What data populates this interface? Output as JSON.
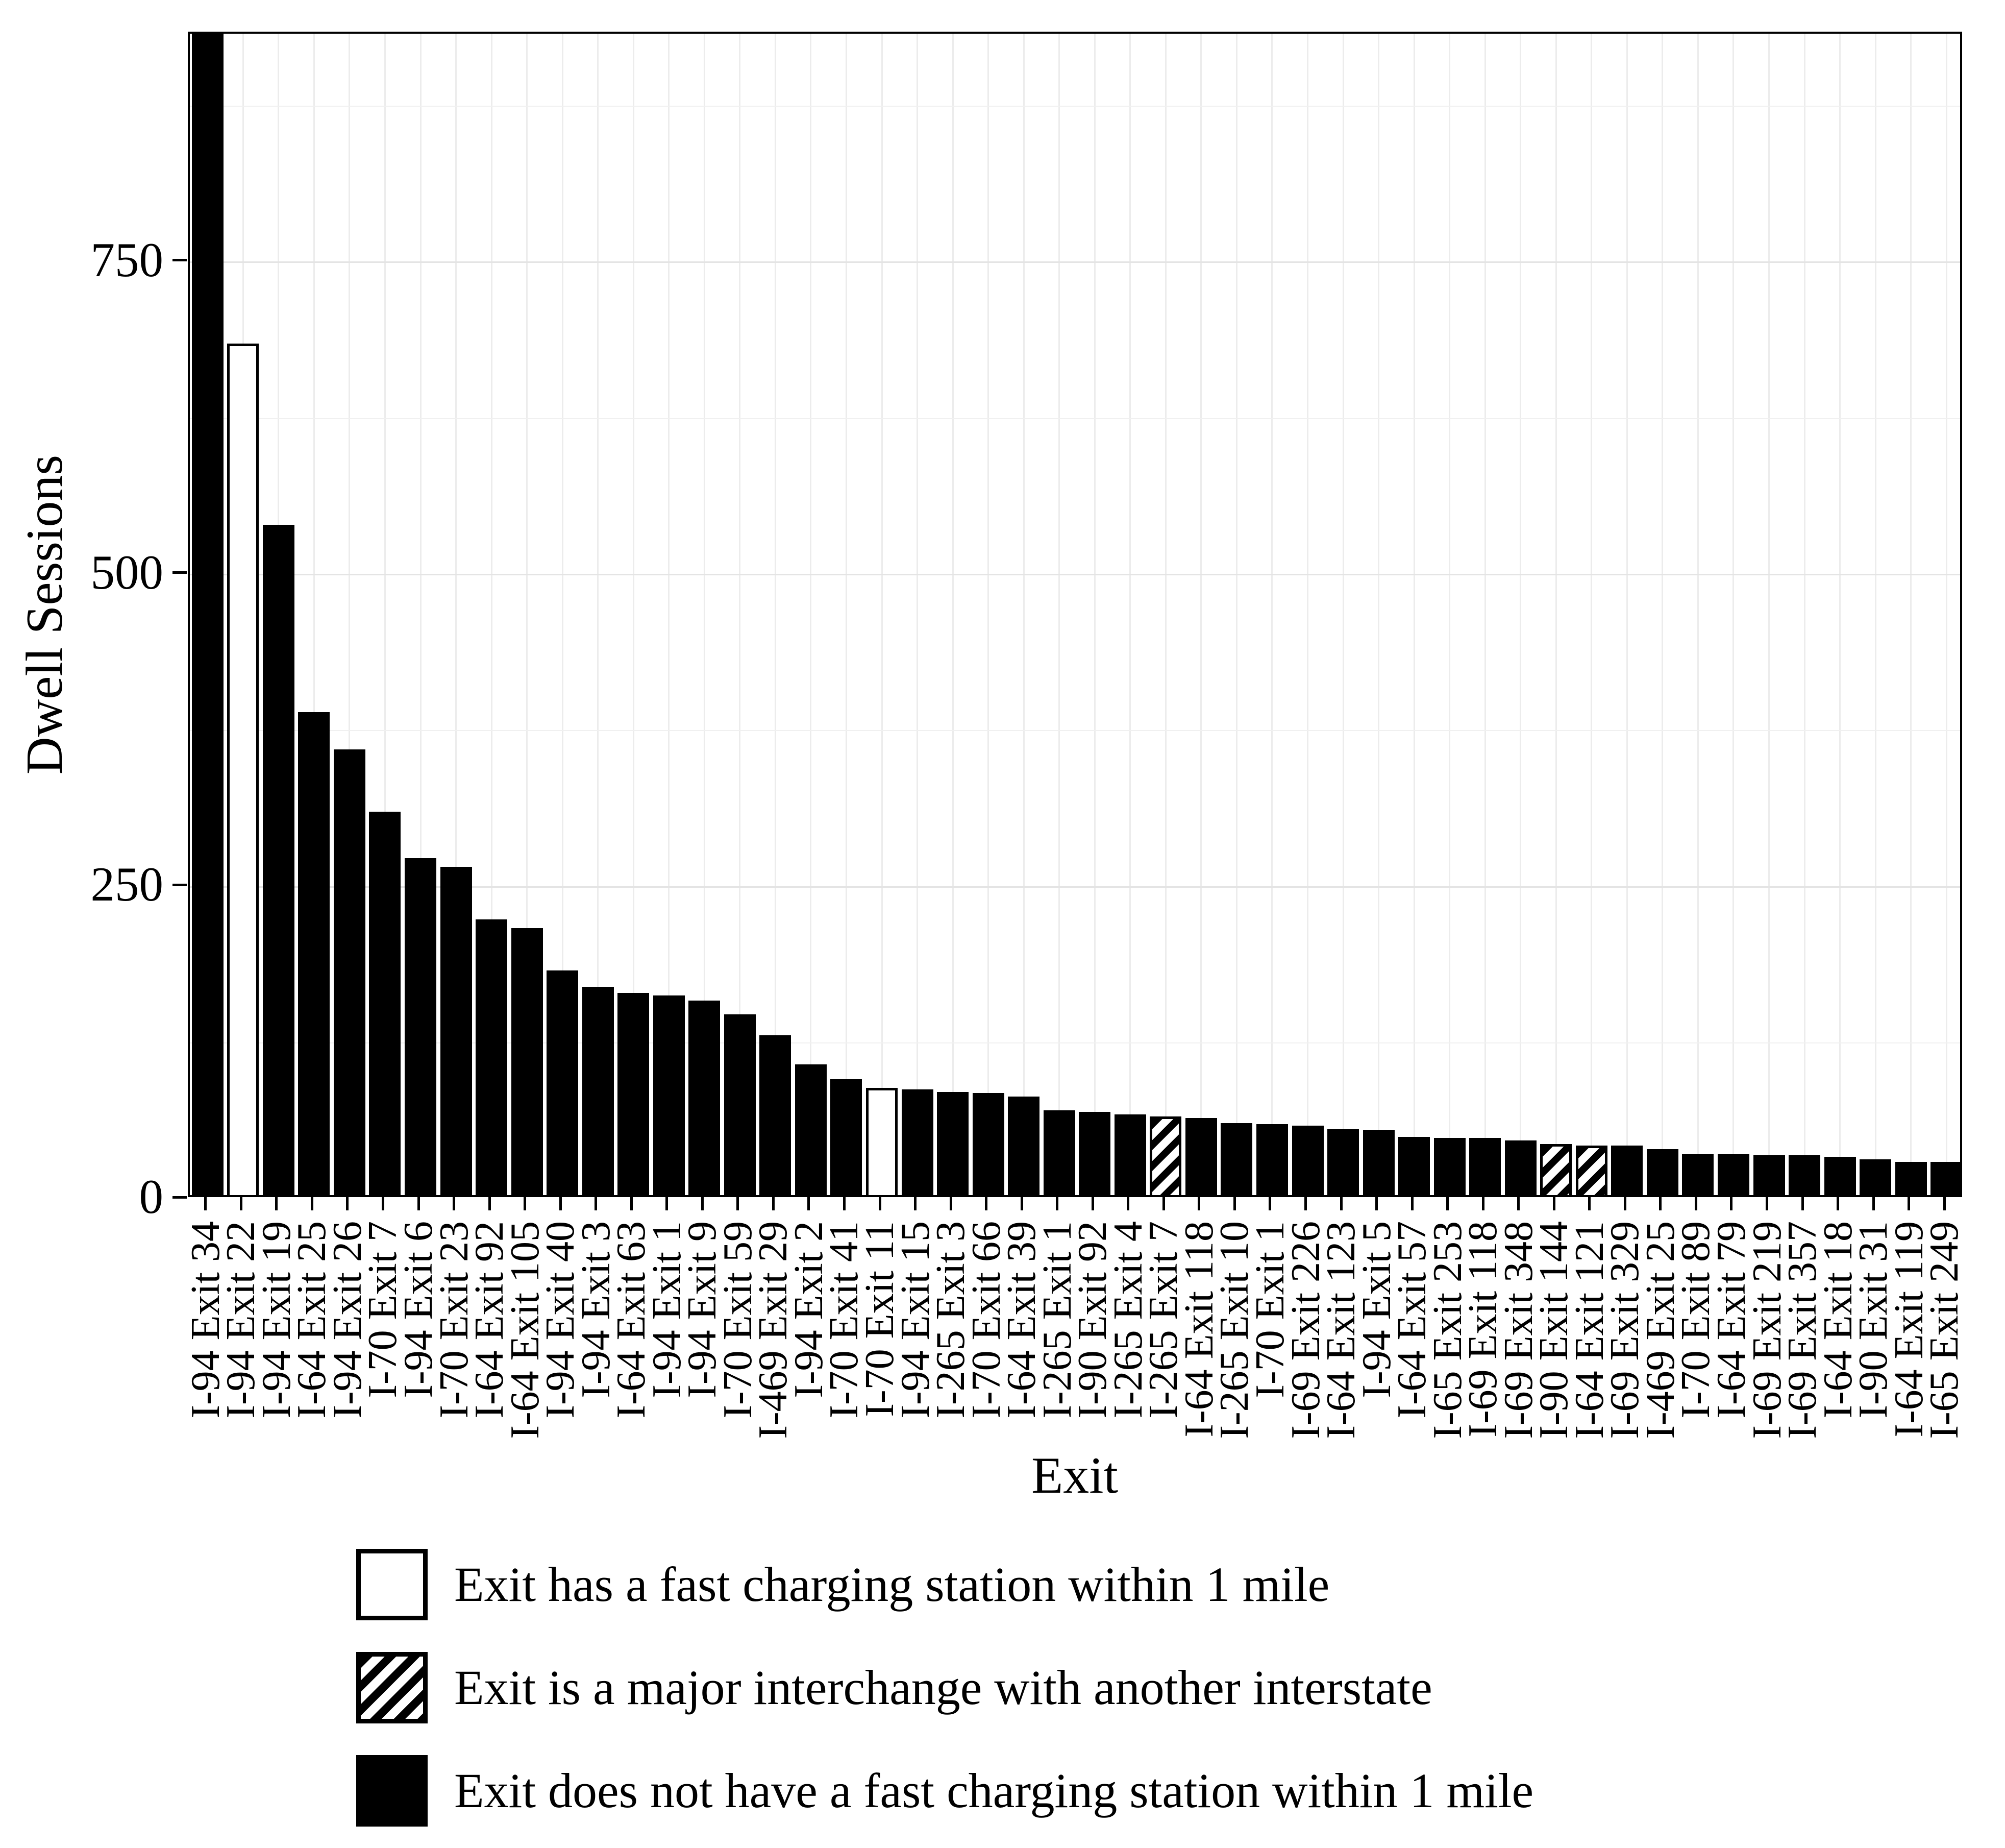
{
  "figure": {
    "background": "#ffffff",
    "text_color": "#000000",
    "gridline_major_color": "#e4e4e4",
    "gridline_minor_color": "#f0f0f0",
    "gridline_vertical_color": "#ececec"
  },
  "chart_data": {
    "type": "bar",
    "title": "",
    "xlabel": "Exit",
    "ylabel": "Dwell Sessions",
    "ylim": [
      0,
      933
    ],
    "y_ticks": [
      0,
      250,
      500,
      750
    ],
    "y_minor_gridlines": [
      125,
      375,
      625,
      875
    ],
    "grid": "on",
    "legend_position": "bottom-left",
    "first_bar_clipped_at_top": true,
    "categories_legend": {
      "has_station": "white fill",
      "interchange": "diagonal hatch",
      "no_station": "black fill"
    },
    "bars": [
      {
        "exit": "I-94 Exit 34",
        "value": 940,
        "category": "no_station"
      },
      {
        "exit": "I-94 Exit 22",
        "value": 685,
        "category": "has_station"
      },
      {
        "exit": "I-94 Exit 19",
        "value": 540,
        "category": "no_station"
      },
      {
        "exit": "I-64 Exit 25",
        "value": 390,
        "category": "no_station"
      },
      {
        "exit": "I-94 Exit 26",
        "value": 360,
        "category": "no_station"
      },
      {
        "exit": "I-70 Exit 7",
        "value": 310,
        "category": "no_station"
      },
      {
        "exit": "I-94 Exit 6",
        "value": 273,
        "category": "no_station"
      },
      {
        "exit": "I-70 Exit 23",
        "value": 266,
        "category": "no_station"
      },
      {
        "exit": "I-64 Exit 92",
        "value": 224,
        "category": "no_station"
      },
      {
        "exit": "I-64 Exit 105",
        "value": 217,
        "category": "no_station"
      },
      {
        "exit": "I-94 Exit 40",
        "value": 183,
        "category": "no_station"
      },
      {
        "exit": "I-94 Exit 3",
        "value": 170,
        "category": "no_station"
      },
      {
        "exit": "I-64 Exit 63",
        "value": 165,
        "category": "no_station"
      },
      {
        "exit": "I-94 Exit 1",
        "value": 163,
        "category": "no_station"
      },
      {
        "exit": "I-94 Exit 9",
        "value": 159,
        "category": "no_station"
      },
      {
        "exit": "I-70 Exit 59",
        "value": 148,
        "category": "no_station"
      },
      {
        "exit": "I-469 Exit 29",
        "value": 131,
        "category": "no_station"
      },
      {
        "exit": "I-94 Exit 2",
        "value": 108,
        "category": "no_station"
      },
      {
        "exit": "I-70 Exit 41",
        "value": 96,
        "category": "no_station"
      },
      {
        "exit": "I-70 Exit 11",
        "value": 89,
        "category": "has_station"
      },
      {
        "exit": "I-94 Exit 15",
        "value": 88,
        "category": "no_station"
      },
      {
        "exit": "I-265 Exit 3",
        "value": 86,
        "category": "no_station"
      },
      {
        "exit": "I-70 Exit 66",
        "value": 85,
        "category": "no_station"
      },
      {
        "exit": "I-64 Exit 39",
        "value": 82,
        "category": "no_station"
      },
      {
        "exit": "I-265 Exit 1",
        "value": 71,
        "category": "no_station"
      },
      {
        "exit": "I-90 Exit 92",
        "value": 70,
        "category": "no_station"
      },
      {
        "exit": "I-265 Exit 4",
        "value": 68,
        "category": "no_station"
      },
      {
        "exit": "I-265 Exit 7",
        "value": 66,
        "category": "interchange"
      },
      {
        "exit": "I-64 Exit 118",
        "value": 65,
        "category": "no_station"
      },
      {
        "exit": "I-265 Exit 10",
        "value": 61,
        "category": "no_station"
      },
      {
        "exit": "I-70 Exit 1",
        "value": 60,
        "category": "no_station"
      },
      {
        "exit": "I-69 Exit 226",
        "value": 59,
        "category": "no_station"
      },
      {
        "exit": "I-64 Exit 123",
        "value": 56,
        "category": "no_station"
      },
      {
        "exit": "I-94 Exit 5",
        "value": 55,
        "category": "no_station"
      },
      {
        "exit": "I-64 Exit 57",
        "value": 50,
        "category": "no_station"
      },
      {
        "exit": "I-65 Exit 253",
        "value": 49,
        "category": "no_station"
      },
      {
        "exit": "I-69 Exit 118",
        "value": 49,
        "category": "no_station"
      },
      {
        "exit": "I-69 Exit 348",
        "value": 47,
        "category": "no_station"
      },
      {
        "exit": "I-90 Exit 144",
        "value": 44,
        "category": "interchange"
      },
      {
        "exit": "I-64 Exit 121",
        "value": 43,
        "category": "interchange"
      },
      {
        "exit": "I-69 Exit 329",
        "value": 43,
        "category": "no_station"
      },
      {
        "exit": "I-469 Exit 25",
        "value": 40,
        "category": "no_station"
      },
      {
        "exit": "I-70 Exit 89",
        "value": 36,
        "category": "no_station"
      },
      {
        "exit": "I-64 Exit 79",
        "value": 36,
        "category": "no_station"
      },
      {
        "exit": "I-69 Exit 219",
        "value": 35,
        "category": "no_station"
      },
      {
        "exit": "I-69 Exit 357",
        "value": 35,
        "category": "no_station"
      },
      {
        "exit": "I-64 Exit 18",
        "value": 34,
        "category": "no_station"
      },
      {
        "exit": "I-90 Exit 31",
        "value": 32,
        "category": "no_station"
      },
      {
        "exit": "I-64 Exit 119",
        "value": 30,
        "category": "no_station"
      },
      {
        "exit": "I-65 Exit 249",
        "value": 30,
        "category": "no_station"
      }
    ]
  },
  "legend": {
    "items": [
      {
        "key": "has_station",
        "label": "Exit has a fast charging station within 1 mile"
      },
      {
        "key": "interchange",
        "label": "Exit is a major interchange with another interstate"
      },
      {
        "key": "no_station",
        "label": "Exit does not have a fast charging station within 1 mile"
      }
    ]
  }
}
